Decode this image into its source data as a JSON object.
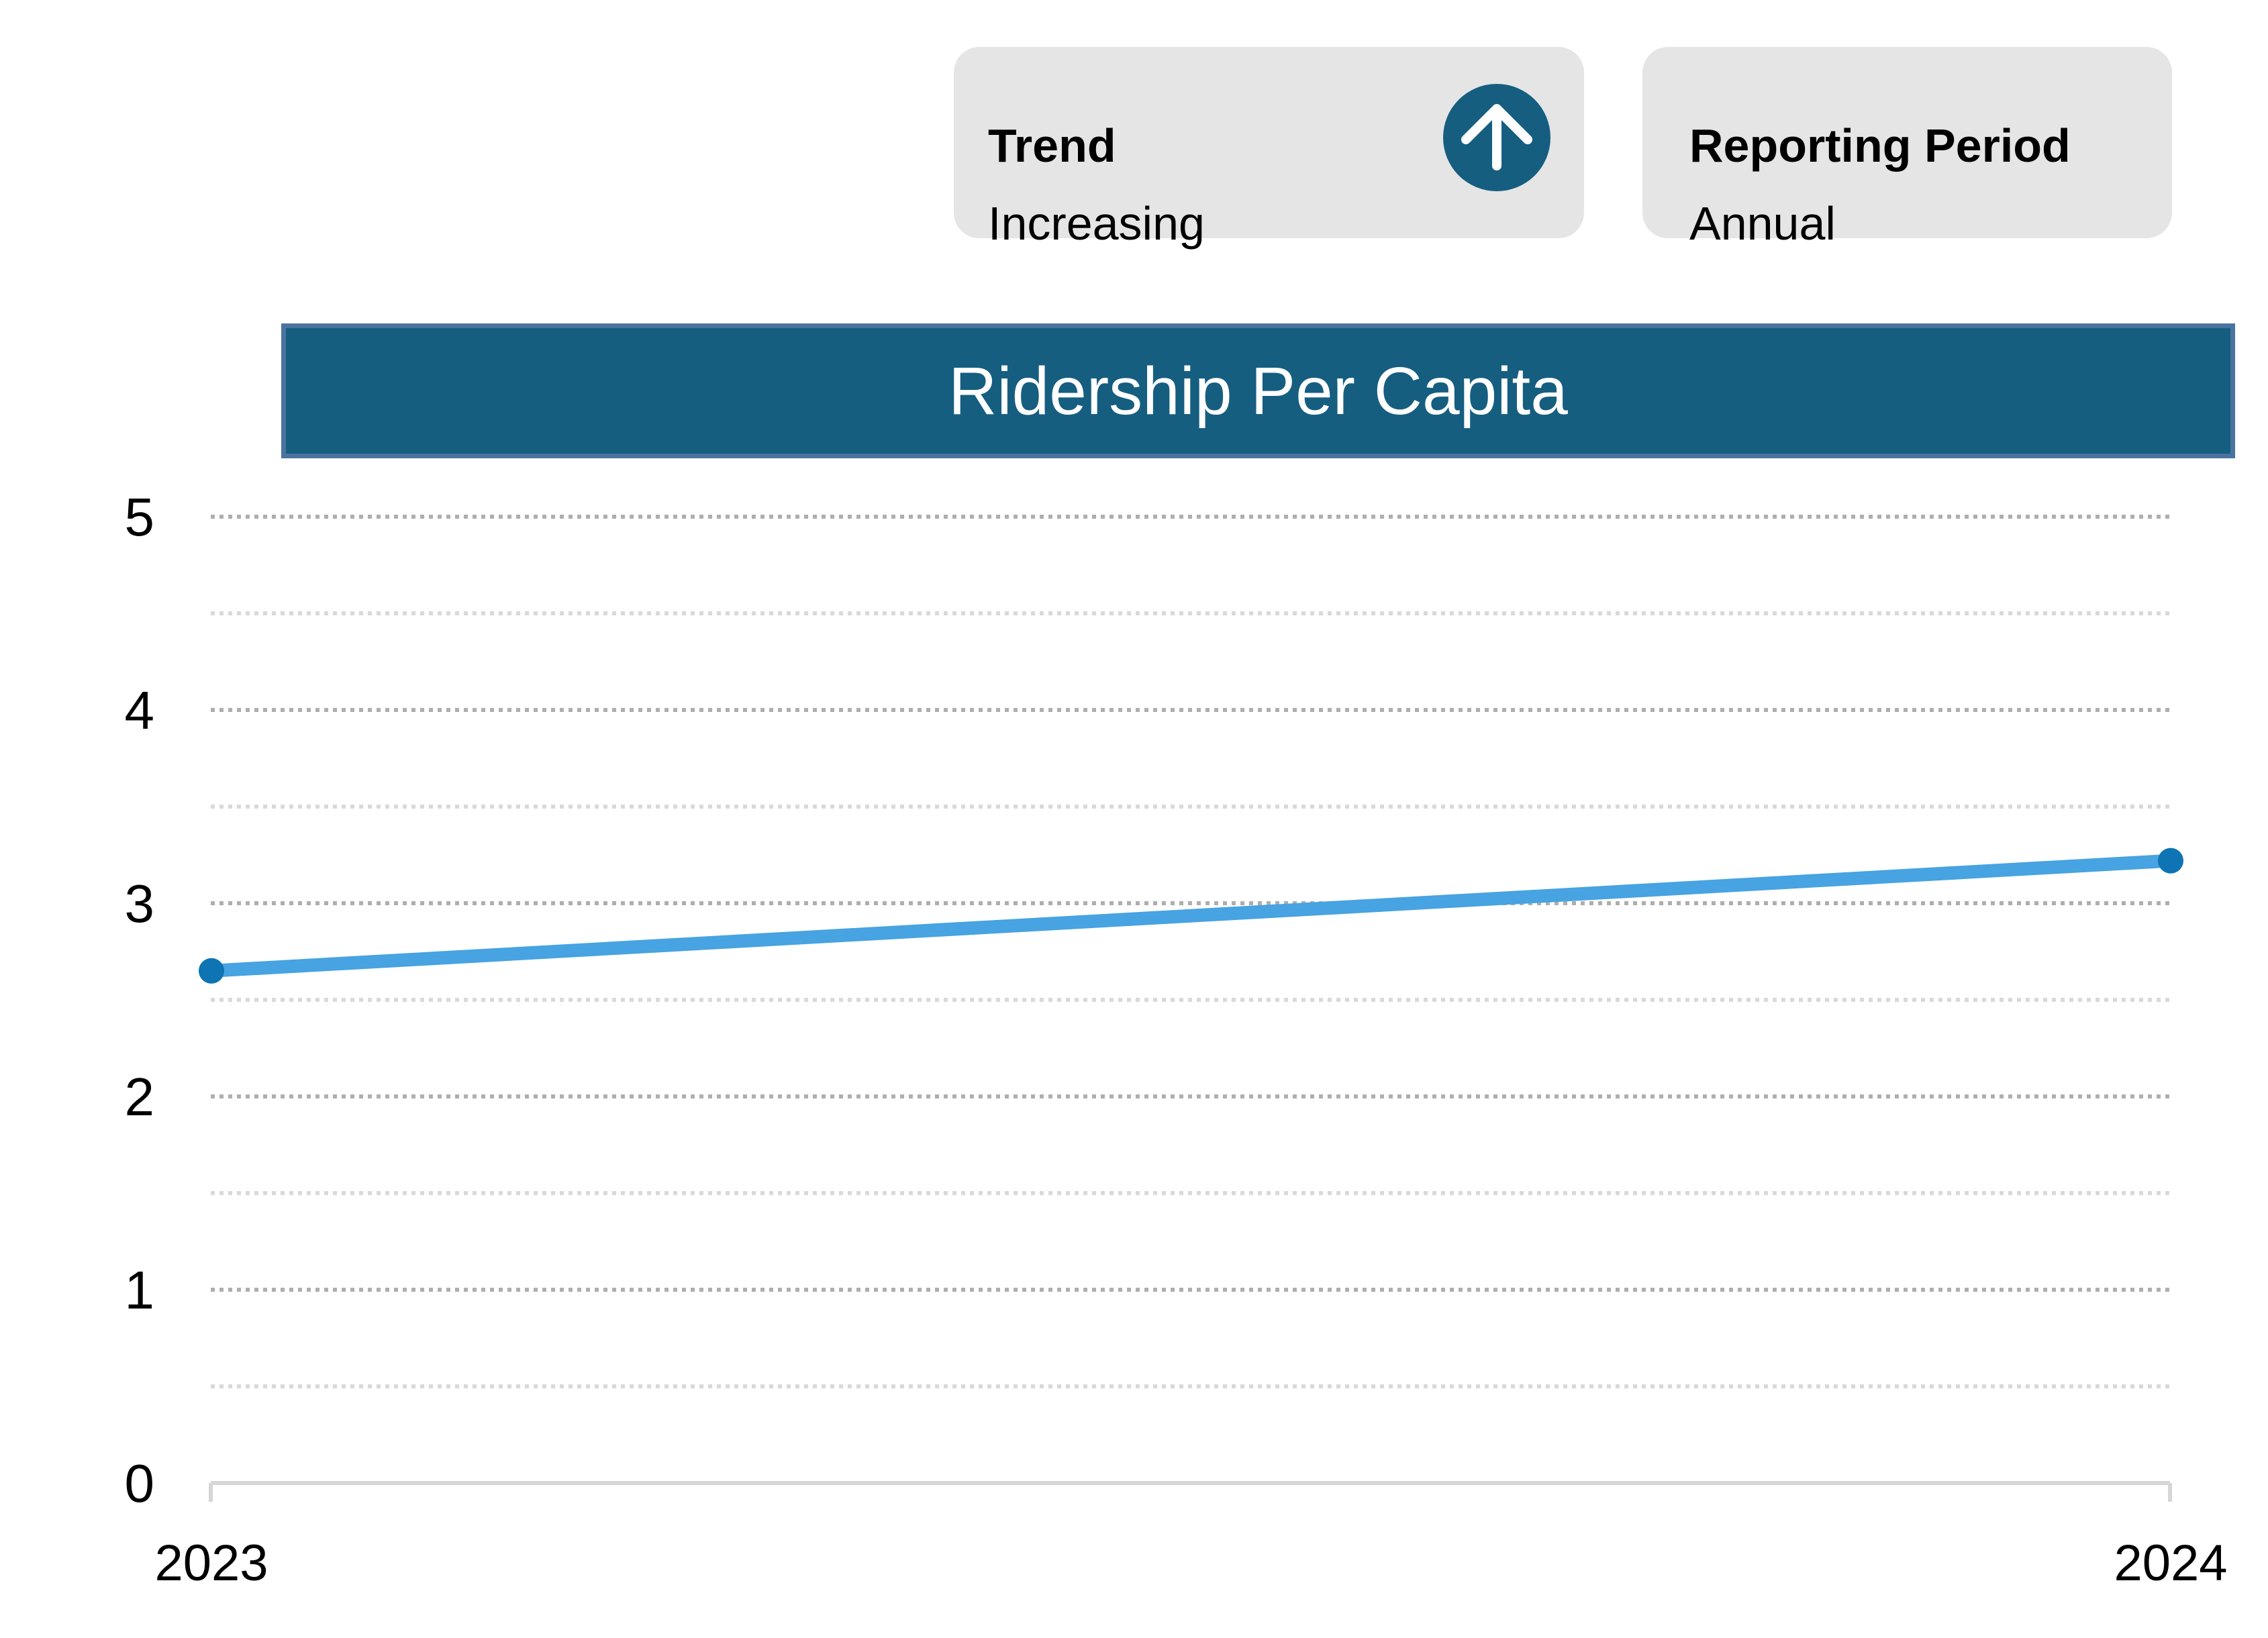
{
  "cards": {
    "trend": {
      "label": "Trend",
      "value": "Increasing",
      "icon": "arrow-up-icon"
    },
    "reporting_period": {
      "label": "Reporting Period",
      "value": "Annual"
    }
  },
  "chart_data": {
    "type": "line",
    "title": "Ridership Per Capita",
    "categories": [
      "2023",
      "2024"
    ],
    "series": [
      {
        "name": "Ridership Per Capita",
        "values": [
          2.65,
          3.22
        ]
      }
    ],
    "xlabel": "",
    "ylabel": "",
    "ylim": [
      0,
      5
    ],
    "yticks": [
      0,
      1,
      2,
      3,
      4,
      5
    ],
    "grid_step": 0.5,
    "grid_style": "dotted horizontal",
    "legend_position": "none"
  },
  "colors": {
    "title_bar_fill": "#165e80",
    "title_bar_border": "#4a73a0",
    "card_background": "#e5e5e5",
    "series_line": "#47a3e1",
    "data_point": "#0e74b4",
    "grid_major": "#aeaeae",
    "grid_minor": "#d9d9d9",
    "axis_line": "#d6d6d6",
    "icon_circle": "#165e80",
    "icon_arrow": "#ffffff",
    "text": "#000000"
  }
}
